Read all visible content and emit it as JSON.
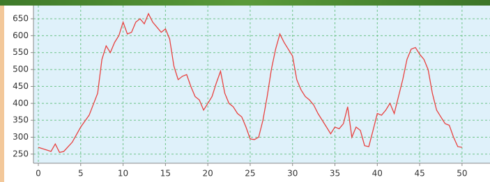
{
  "chart_data": {
    "type": "line",
    "x": [
      0,
      1,
      1.5,
      2,
      2.5,
      3,
      4,
      5,
      6,
      7,
      7.5,
      8,
      8.5,
      9,
      9.5,
      10,
      10.5,
      11,
      11.5,
      12,
      12.5,
      13,
      13.5,
      14,
      14.5,
      15,
      15.5,
      16,
      16.5,
      17,
      17.5,
      18,
      18.5,
      19,
      19.5,
      20,
      20.5,
      21,
      21.5,
      22,
      22.5,
      23,
      23.5,
      24,
      24.5,
      25,
      25.5,
      26,
      26.5,
      27,
      27.5,
      28,
      28.5,
      29,
      29.5,
      30,
      30.5,
      31,
      31.5,
      32,
      32.5,
      33,
      33.5,
      34,
      34.5,
      35,
      35.5,
      36,
      36.5,
      37,
      37.5,
      38,
      38.5,
      39,
      39.5,
      40,
      40.5,
      41,
      41.5,
      42,
      42.5,
      43,
      43.5,
      44,
      44.5,
      45,
      45.5,
      46,
      46.5,
      47,
      47.5,
      48,
      48.5,
      49,
      49.5,
      50
    ],
    "values": [
      270,
      262,
      258,
      280,
      255,
      258,
      285,
      330,
      365,
      430,
      530,
      570,
      550,
      580,
      600,
      640,
      605,
      610,
      640,
      650,
      635,
      665,
      640,
      625,
      610,
      620,
      590,
      510,
      470,
      480,
      485,
      450,
      420,
      410,
      380,
      400,
      420,
      460,
      495,
      430,
      400,
      390,
      370,
      360,
      330,
      295,
      293,
      300,
      350,
      420,
      500,
      560,
      605,
      580,
      560,
      540,
      470,
      440,
      420,
      410,
      395,
      370,
      350,
      330,
      310,
      330,
      325,
      340,
      390,
      300,
      330,
      320,
      275,
      272,
      320,
      370,
      365,
      380,
      400,
      370,
      420,
      470,
      530,
      560,
      565,
      545,
      530,
      500,
      430,
      380,
      360,
      340,
      335,
      300,
      272,
      270
    ],
    "color": "#e8413f",
    "xlim": [
      0,
      53.3
    ],
    "ylim": [
      223,
      689
    ],
    "xticks": [
      0,
      5,
      10,
      15,
      20,
      25,
      30,
      35,
      40,
      45,
      50
    ],
    "yticks": [
      250,
      300,
      350,
      400,
      450,
      500,
      550,
      600,
      650
    ],
    "grid": true
  }
}
